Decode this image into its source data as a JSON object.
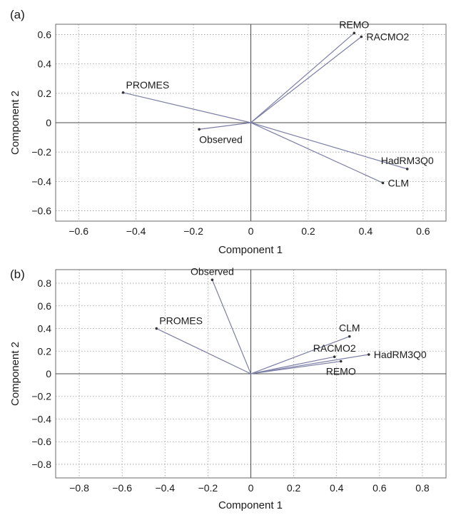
{
  "colors": {
    "vector": "#7c7fa6",
    "axis": "#4a4a4a",
    "grid": "#9a9a9a",
    "text": "#1a1a1a"
  },
  "chart_data": [
    {
      "type": "scatter",
      "panel_label": "(a)",
      "xlabel": "Component 1",
      "ylabel": "Component 2",
      "xlim": [
        -0.68,
        0.68
      ],
      "ylim": [
        -0.67,
        0.67
      ],
      "xticks": [
        -0.6,
        -0.4,
        -0.2,
        0,
        0.2,
        0.4,
        0.6
      ],
      "xtick_labels": [
        "−0.6",
        "−0.4",
        "−0.2",
        "0",
        "0.2",
        "0.4",
        "0.6"
      ],
      "yticks": [
        0.6,
        0.4,
        0.2,
        0,
        -0.2,
        -0.4,
        -0.6
      ],
      "ytick_labels": [
        "0.6",
        "0.4",
        "0.2",
        "0",
        "−0.2",
        "−0.4",
        "−0.6"
      ],
      "grid": true,
      "points": [
        {
          "name": "REMO",
          "x": 0.36,
          "y": 0.61,
          "label_pos": "above"
        },
        {
          "name": "RACMO2",
          "x": 0.385,
          "y": 0.585,
          "label_pos": "right"
        },
        {
          "name": "PROMES",
          "x": -0.445,
          "y": 0.205,
          "label_pos": "above-right"
        },
        {
          "name": "Observed",
          "x": -0.18,
          "y": -0.045,
          "label_pos": "below-right"
        },
        {
          "name": "HadRM3Q0",
          "x": 0.545,
          "y": -0.315,
          "label_pos": "above"
        },
        {
          "name": "CLM",
          "x": 0.46,
          "y": -0.41,
          "label_pos": "right"
        }
      ]
    },
    {
      "type": "scatter",
      "panel_label": "(b)",
      "xlabel": "Component 1",
      "ylabel": "Component 2",
      "xlim": [
        -0.91,
        0.91
      ],
      "ylim": [
        -0.92,
        0.92
      ],
      "xticks": [
        -0.8,
        -0.6,
        -0.4,
        -0.2,
        0,
        0.2,
        0.4,
        0.6,
        0.8
      ],
      "xtick_labels": [
        "−0.8",
        "−0.6",
        "−0.4",
        "−0.2",
        "0",
        "0.2",
        "0.4",
        "0.6",
        "0.8"
      ],
      "yticks": [
        0.8,
        0.6,
        0.4,
        0.2,
        0,
        -0.2,
        -0.4,
        -0.6,
        -0.8
      ],
      "ytick_labels": [
        "0.8",
        "0.6",
        "0.4",
        "0.2",
        "0",
        "−0.2",
        "−0.4",
        "−0.6",
        "−0.8"
      ],
      "grid": true,
      "points": [
        {
          "name": "Observed",
          "x": -0.18,
          "y": 0.83,
          "label_pos": "above"
        },
        {
          "name": "PROMES",
          "x": -0.44,
          "y": 0.4,
          "label_pos": "above-right"
        },
        {
          "name": "CLM",
          "x": 0.46,
          "y": 0.33,
          "label_pos": "above"
        },
        {
          "name": "RACMO2",
          "x": 0.39,
          "y": 0.15,
          "label_pos": "above"
        },
        {
          "name": "HadRM3Q0",
          "x": 0.55,
          "y": 0.17,
          "label_pos": "right"
        },
        {
          "name": "REMO",
          "x": 0.42,
          "y": 0.11,
          "label_pos": "below"
        }
      ]
    }
  ]
}
